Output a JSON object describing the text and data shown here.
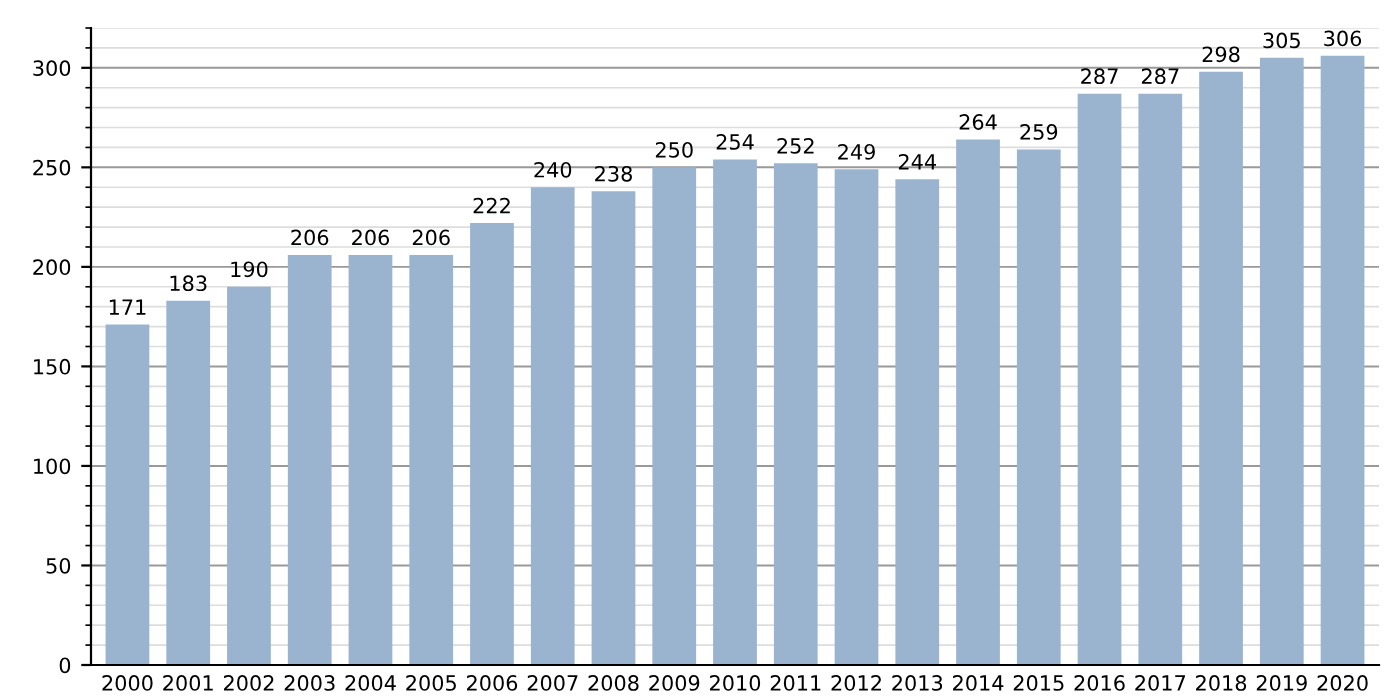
{
  "chart_data": {
    "type": "bar",
    "categories": [
      "2000",
      "2001",
      "2002",
      "2003",
      "2004",
      "2005",
      "2006",
      "2007",
      "2008",
      "2009",
      "2010",
      "2011",
      "2012",
      "2013",
      "2014",
      "2015",
      "2016",
      "2017",
      "2018",
      "2019",
      "2020"
    ],
    "values": [
      171,
      183,
      190,
      206,
      206,
      206,
      222,
      240,
      238,
      250,
      254,
      252,
      249,
      244,
      264,
      259,
      287,
      287,
      298,
      305,
      306
    ],
    "color": "#9ab3cf",
    "ylim": [
      0,
      320
    ],
    "yticks": [
      0,
      50,
      100,
      150,
      200,
      250,
      300
    ],
    "grid": "y",
    "data_labels": true
  }
}
